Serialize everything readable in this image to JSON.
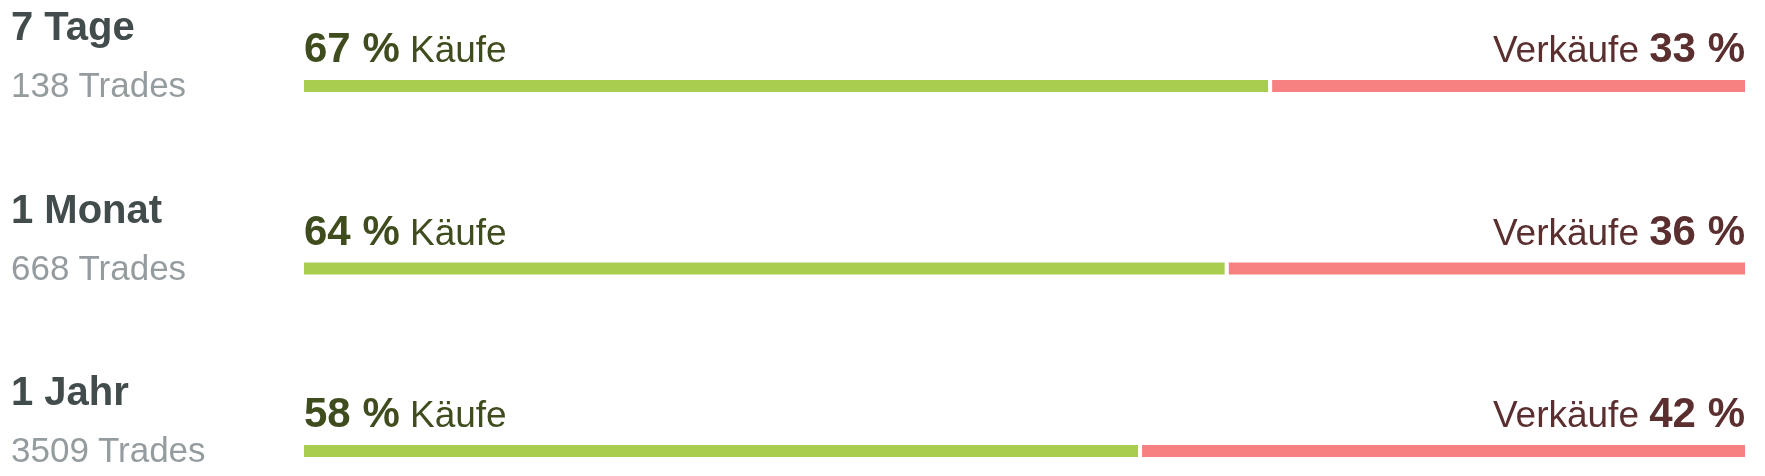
{
  "chart_data": {
    "type": "bar",
    "orientation": "horizontal",
    "stacked": true,
    "tick_labels": false,
    "categories": [
      "7 Tage",
      "1 Monat",
      "1 Jahr"
    ],
    "series": [
      {
        "name": "Käufe",
        "color": "#a9cd4e",
        "values": [
          67,
          64,
          58
        ],
        "value_labels": [
          "67 %",
          "64 %",
          "58 %"
        ]
      },
      {
        "name": "Verkäufe",
        "color": "#f78080",
        "values": [
          33,
          36,
          42
        ],
        "value_labels": [
          "33 %",
          "36 %",
          "42 %"
        ]
      }
    ],
    "annotations": [
      "138 Trades",
      "668 Trades",
      "3509 Trades"
    ]
  }
}
